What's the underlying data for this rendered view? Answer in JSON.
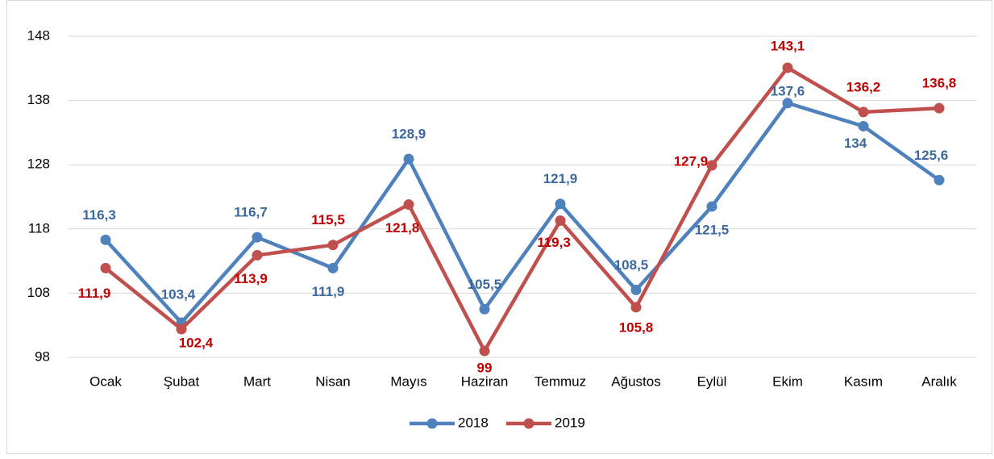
{
  "chart_data": {
    "type": "line",
    "categories": [
      "Ocak",
      "Şubat",
      "Mart",
      "Nisan",
      "Mayıs",
      "Haziran",
      "Temmuz",
      "Ağustos",
      "Eylül",
      "Ekim",
      "Kasım",
      "Aralık"
    ],
    "series": [
      {
        "name": "2018",
        "color": "#4f81bd",
        "label_color": "#3c68a0",
        "values": [
          116.3,
          103.4,
          116.7,
          111.9,
          128.9,
          105.5,
          121.9,
          108.5,
          121.5,
          137.6,
          134,
          125.6
        ],
        "value_labels": [
          "116,3",
          "103,4",
          "116,7",
          "111,9",
          "128,9",
          "105,5",
          "121,9",
          "108,5",
          "121,5",
          "137,6",
          "134",
          "125,6"
        ]
      },
      {
        "name": "2019",
        "color": "#c0504d",
        "label_color": "#c00000",
        "values": [
          111.9,
          102.4,
          113.9,
          115.5,
          121.8,
          99,
          119.3,
          105.8,
          127.9,
          143.1,
          136.2,
          136.8
        ],
        "value_labels": [
          "111,9",
          "102,4",
          "113,9",
          "115,5",
          "121,8",
          "99",
          "119,3",
          "105,8",
          "127,9",
          "143,1",
          "136,2",
          "136,8"
        ]
      }
    ],
    "ylim": [
      98,
      148
    ],
    "yticks": [
      98,
      108,
      118,
      128,
      138,
      148
    ],
    "grid": true,
    "legend": "bottom"
  }
}
